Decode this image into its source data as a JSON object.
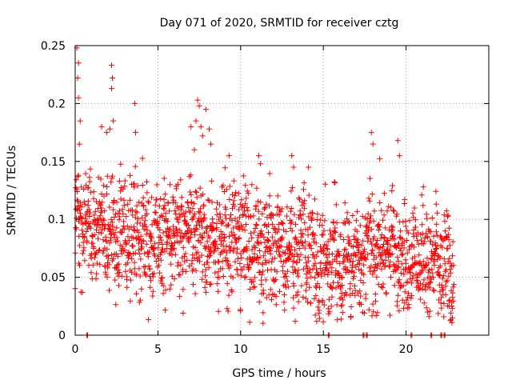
{
  "chart_data": {
    "type": "scatter",
    "title": "Day 071 of 2020, SRMTID for receiver cztg",
    "xlabel": "GPS time / hours",
    "ylabel": "SRMTID / TECUs",
    "xlim": [
      0,
      25
    ],
    "ylim": [
      0,
      0.25
    ],
    "x_ticks": [
      0,
      5,
      10,
      15,
      20
    ],
    "x_tick_labels": [
      "0",
      "5",
      "10",
      "15",
      "20"
    ],
    "y_ticks": [
      0,
      0.05,
      0.1,
      0.15,
      0.2,
      0.25
    ],
    "y_tick_labels": [
      "0",
      "0.05",
      "0.1",
      "0.15",
      "0.2",
      "0.25"
    ],
    "grid": true,
    "marker": "plus",
    "color": "#ff0000",
    "series": [
      {
        "name": "SRMTID",
        "x_range": [
          0,
          22.9
        ],
        "trend": [
          [
            0,
            0.095
          ],
          [
            2,
            0.09
          ],
          [
            4,
            0.085
          ],
          [
            6,
            0.085
          ],
          [
            7.5,
            0.09
          ],
          [
            10,
            0.075
          ],
          [
            12,
            0.08
          ],
          [
            14,
            0.07
          ],
          [
            15,
            0.06
          ],
          [
            17,
            0.065
          ],
          [
            18.5,
            0.075
          ],
          [
            20,
            0.07
          ],
          [
            21.5,
            0.065
          ],
          [
            22.9,
            0.05
          ]
        ],
        "spread": 0.028,
        "highlights": [
          {
            "x": 0.1,
            "y": 0.248
          },
          {
            "x": 0.2,
            "y": 0.235
          },
          {
            "x": 0.15,
            "y": 0.222
          },
          {
            "x": 0.2,
            "y": 0.205
          },
          {
            "x": 0.3,
            "y": 0.185
          },
          {
            "x": 0.25,
            "y": 0.165
          },
          {
            "x": 2.2,
            "y": 0.233
          },
          {
            "x": 2.25,
            "y": 0.222
          },
          {
            "x": 2.2,
            "y": 0.213
          },
          {
            "x": 2.3,
            "y": 0.185
          },
          {
            "x": 2.1,
            "y": 0.178
          },
          {
            "x": 3.6,
            "y": 0.2
          },
          {
            "x": 3.65,
            "y": 0.175
          },
          {
            "x": 7.4,
            "y": 0.203
          },
          {
            "x": 7.5,
            "y": 0.198
          },
          {
            "x": 7.3,
            "y": 0.185
          },
          {
            "x": 7.6,
            "y": 0.18
          },
          {
            "x": 7.7,
            "y": 0.172
          },
          {
            "x": 7.9,
            "y": 0.195
          },
          {
            "x": 8.1,
            "y": 0.178
          },
          {
            "x": 7.0,
            "y": 0.18
          },
          {
            "x": 8.2,
            "y": 0.165
          },
          {
            "x": 7.2,
            "y": 0.16
          },
          {
            "x": 17.9,
            "y": 0.175
          },
          {
            "x": 18.0,
            "y": 0.165
          },
          {
            "x": 19.5,
            "y": 0.168
          },
          {
            "x": 19.6,
            "y": 0.155
          },
          {
            "x": 1.6,
            "y": 0.18
          },
          {
            "x": 1.9,
            "y": 0.175
          },
          {
            "x": 9.3,
            "y": 0.155
          },
          {
            "x": 11.1,
            "y": 0.155
          },
          {
            "x": 11.2,
            "y": 0.148
          },
          {
            "x": 13.2,
            "y": 0.145
          },
          {
            "x": 14.1,
            "y": 0.145
          },
          {
            "x": 14.6,
            "y": 0.012
          },
          {
            "x": 13.3,
            "y": 0.012
          },
          {
            "x": 22.8,
            "y": 0.015
          },
          {
            "x": 22.6,
            "y": 0.025
          },
          {
            "x": 21.3,
            "y": 0.02
          }
        ],
        "zero_points": [
          0.7,
          15.3,
          17.4,
          17.6,
          20.3,
          21.5,
          22.1,
          22.3
        ]
      }
    ]
  }
}
